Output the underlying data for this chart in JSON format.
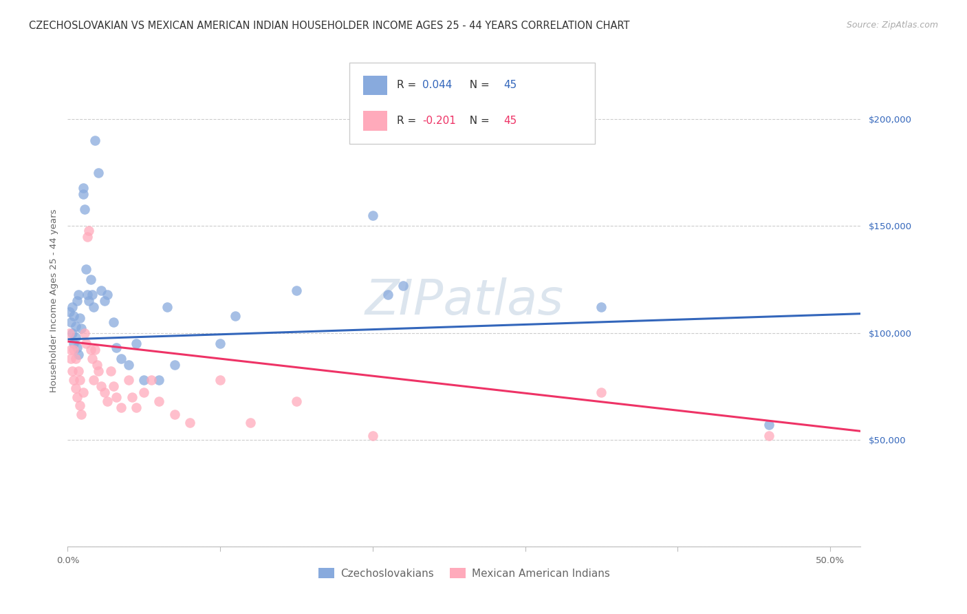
{
  "title": "CZECHOSLOVAKIAN VS MEXICAN AMERICAN INDIAN HOUSEHOLDER INCOME AGES 25 - 44 YEARS CORRELATION CHART",
  "source": "Source: ZipAtlas.com",
  "ylabel": "Householder Income Ages 25 - 44 years",
  "xlim": [
    0.0,
    0.52
  ],
  "ylim": [
    0,
    230000
  ],
  "xticks": [
    0.0,
    0.1,
    0.2,
    0.3,
    0.4,
    0.5
  ],
  "xticklabels": [
    "0.0%",
    "",
    "",
    "",
    "",
    "50.0%"
  ],
  "yticks": [
    0,
    50000,
    100000,
    150000,
    200000
  ],
  "yticklabels": [
    "",
    "$50,000",
    "$100,000",
    "$150,000",
    "$200,000"
  ],
  "grid_color": "#cccccc",
  "background_color": "#ffffff",
  "watermark": "ZIPatlas",
  "watermark_color": "#c0d0e0",
  "watermark_alpha": 0.55,
  "watermark_fontsize": 52,
  "legend_label1": "Czechoslovakians",
  "legend_label2": "Mexican American Indians",
  "blue_color": "#88aadd",
  "pink_color": "#ffaabb",
  "blue_line_color": "#3366bb",
  "pink_line_color": "#ee3366",
  "blue_r": "0.044",
  "pink_r": "-0.201",
  "n": "45",
  "blue_scatter_x": [
    0.001,
    0.002,
    0.003,
    0.003,
    0.004,
    0.004,
    0.005,
    0.005,
    0.006,
    0.006,
    0.007,
    0.007,
    0.008,
    0.009,
    0.01,
    0.01,
    0.011,
    0.012,
    0.013,
    0.014,
    0.015,
    0.016,
    0.017,
    0.018,
    0.02,
    0.022,
    0.024,
    0.026,
    0.03,
    0.032,
    0.035,
    0.04,
    0.045,
    0.05,
    0.06,
    0.065,
    0.07,
    0.1,
    0.11,
    0.15,
    0.2,
    0.21,
    0.22,
    0.35,
    0.46
  ],
  "blue_scatter_y": [
    110000,
    105000,
    100000,
    112000,
    95000,
    108000,
    103000,
    98000,
    115000,
    93000,
    118000,
    90000,
    107000,
    102000,
    165000,
    168000,
    158000,
    130000,
    118000,
    115000,
    125000,
    118000,
    112000,
    190000,
    175000,
    120000,
    115000,
    118000,
    105000,
    93000,
    88000,
    85000,
    95000,
    78000,
    78000,
    112000,
    85000,
    95000,
    108000,
    120000,
    155000,
    118000,
    122000,
    112000,
    57000
  ],
  "pink_scatter_x": [
    0.001,
    0.002,
    0.002,
    0.003,
    0.004,
    0.004,
    0.005,
    0.005,
    0.006,
    0.007,
    0.008,
    0.008,
    0.009,
    0.01,
    0.011,
    0.012,
    0.013,
    0.014,
    0.015,
    0.016,
    0.017,
    0.018,
    0.019,
    0.02,
    0.022,
    0.024,
    0.026,
    0.028,
    0.03,
    0.032,
    0.035,
    0.04,
    0.042,
    0.045,
    0.05,
    0.055,
    0.06,
    0.07,
    0.08,
    0.1,
    0.12,
    0.15,
    0.2,
    0.35,
    0.46
  ],
  "pink_scatter_y": [
    100000,
    92000,
    88000,
    82000,
    78000,
    92000,
    74000,
    88000,
    70000,
    82000,
    66000,
    78000,
    62000,
    72000,
    100000,
    95000,
    145000,
    148000,
    92000,
    88000,
    78000,
    92000,
    85000,
    82000,
    75000,
    72000,
    68000,
    82000,
    75000,
    70000,
    65000,
    78000,
    70000,
    65000,
    72000,
    78000,
    68000,
    62000,
    58000,
    78000,
    58000,
    68000,
    52000,
    72000,
    52000
  ],
  "blue_line_x": [
    0.0,
    0.52
  ],
  "blue_line_y": [
    97000,
    109000
  ],
  "pink_line_x": [
    0.0,
    0.52
  ],
  "pink_line_y": [
    96000,
    54000
  ],
  "title_fontsize": 10.5,
  "source_fontsize": 9,
  "axis_label_fontsize": 9.5,
  "tick_fontsize": 9.5,
  "legend_fontsize": 11
}
